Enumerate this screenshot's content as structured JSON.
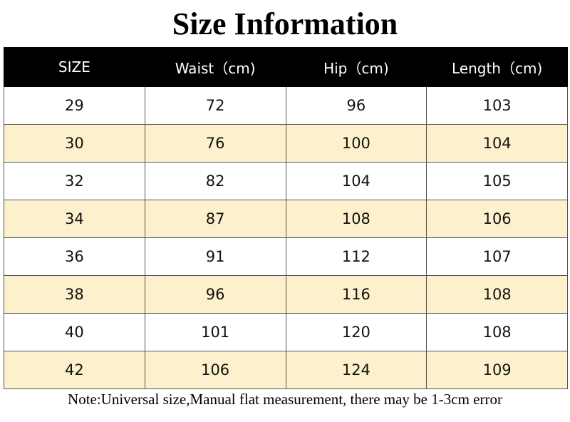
{
  "header": {
    "title": "Size Information"
  },
  "table": {
    "columns": [
      "SIZE",
      "Waist（cm)",
      "Hip（cm)",
      "Length（cm)"
    ],
    "rows": [
      [
        "29",
        "72",
        "96",
        "103"
      ],
      [
        "30",
        "76",
        "100",
        "104"
      ],
      [
        "32",
        "82",
        "104",
        "105"
      ],
      [
        "34",
        "87",
        "108",
        "106"
      ],
      [
        "36",
        "91",
        "112",
        "107"
      ],
      [
        "38",
        "96",
        "116",
        "108"
      ],
      [
        "40",
        "101",
        "120",
        "108"
      ],
      [
        "42",
        "106",
        "124",
        "109"
      ]
    ]
  },
  "note": "Note:Universal size,Manual flat measurement, there may be 1-3cm error"
}
